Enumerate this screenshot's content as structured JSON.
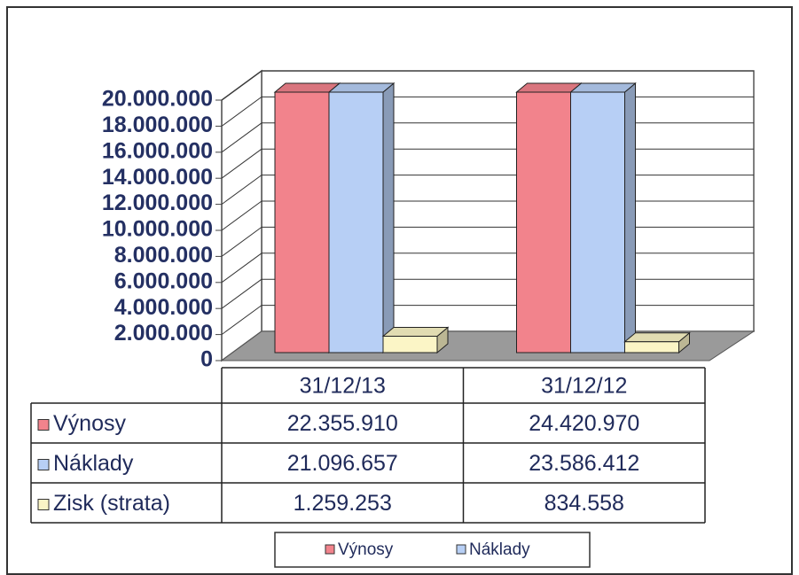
{
  "chart_data": {
    "type": "bar3d",
    "categories": [
      "31/12/13",
      "31/12/12"
    ],
    "series": [
      {
        "name": "Výnosy",
        "color": "#f2838c",
        "values": [
          22355910,
          24420970
        ],
        "value_labels": [
          "22.355.910",
          "24.420.970"
        ]
      },
      {
        "name": "Náklady",
        "color": "#b7cff5",
        "values": [
          21096657,
          23586412
        ],
        "value_labels": [
          "21.096.657",
          "23.586.412"
        ]
      },
      {
        "name": "Zisk (strata)",
        "color": "#fbf5c6",
        "values": [
          1259253,
          834558
        ],
        "value_labels": [
          "1.259.253",
          "834.558"
        ]
      }
    ],
    "ylim": [
      0,
      20000000
    ],
    "yticks": [
      0,
      {
        "value": 2000000,
        "label": "2.000.000"
      },
      {
        "value": 4000000,
        "label": "4.000.000"
      },
      {
        "value": 6000000,
        "label": "6.000.000"
      },
      {
        "value": 8000000,
        "label": "8.000.000"
      },
      {
        "value": 10000000,
        "label": "10.000.000"
      },
      {
        "value": 12000000,
        "label": "12.000.000"
      },
      {
        "value": 14000000,
        "label": "14.000.000"
      },
      {
        "value": 16000000,
        "label": "16.000.000"
      },
      {
        "value": 18000000,
        "label": "18.000.000"
      },
      {
        "value": 20000000,
        "label": "20.000.000"
      }
    ],
    "grid": true
  }
}
